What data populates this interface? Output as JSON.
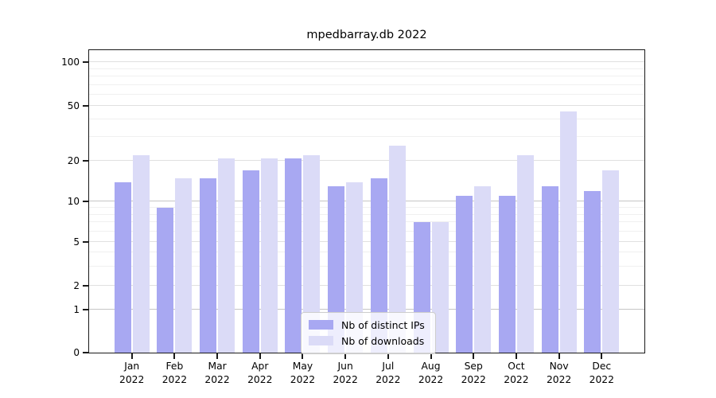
{
  "chart_data": {
    "type": "bar",
    "title": "mpedbarray.db 2022",
    "categories": [
      "Jan",
      "Feb",
      "Mar",
      "Apr",
      "May",
      "Jun",
      "Jul",
      "Aug",
      "Sep",
      "Oct",
      "Nov",
      "Dec"
    ],
    "category_year": "2022",
    "series": [
      {
        "name": "Nb of distinct IPs",
        "color": "#a8a8f2",
        "values": [
          14,
          9,
          15,
          17,
          21,
          13,
          15,
          7,
          11,
          11,
          13,
          12
        ]
      },
      {
        "name": "Nb of downloads",
        "color": "#dbdbf7",
        "values": [
          22,
          15,
          21,
          21,
          22,
          14,
          26,
          7,
          13,
          22,
          46,
          17
        ]
      }
    ],
    "xlabel": "",
    "ylabel": "",
    "yscale": "symlog-like",
    "ylim": [
      0,
      120
    ],
    "yticks": [
      100,
      50,
      20,
      10,
      5,
      2,
      1,
      0
    ],
    "y_scale_anchors": [
      [
        0,
        0
      ],
      [
        1,
        0.142
      ],
      [
        2,
        0.221
      ],
      [
        5,
        0.366
      ],
      [
        10,
        0.499
      ],
      [
        20,
        0.633
      ],
      [
        50,
        0.815
      ],
      [
        100,
        0.96
      ]
    ],
    "gridlines": {
      "strong": [
        10,
        1
      ],
      "major": [
        100,
        50,
        20,
        5,
        2
      ],
      "minor": [
        90,
        80,
        70,
        60,
        40,
        30,
        9,
        8,
        7,
        6,
        4,
        3
      ]
    },
    "grid": true,
    "legend": {
      "position": "bottom-center",
      "entries": [
        "Nb of distinct IPs",
        "Nb of downloads"
      ]
    }
  }
}
